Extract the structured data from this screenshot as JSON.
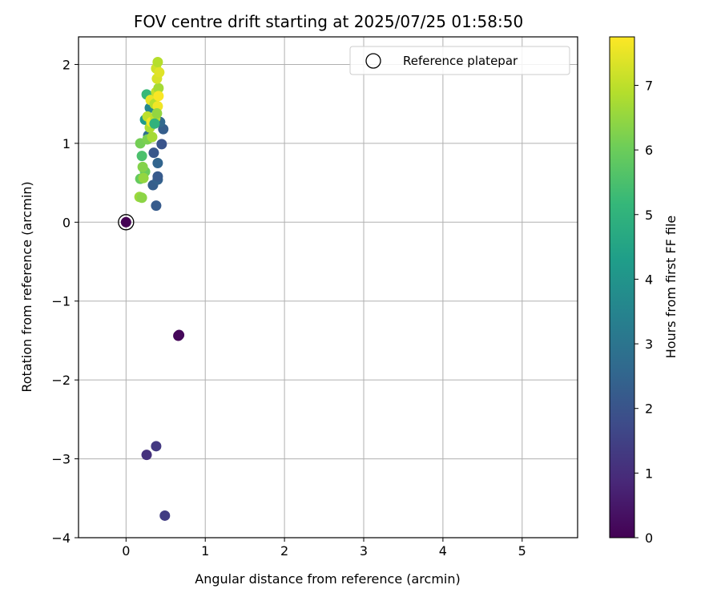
{
  "chart_data": {
    "type": "scatter",
    "title": "FOV centre drift starting at 2025/07/25 01:58:50",
    "xlabel": "Angular distance from reference (arcmin)",
    "ylabel": "Rotation from reference (arcmin)",
    "xlim": [
      -0.6,
      5.7
    ],
    "ylim": [
      -4,
      2.35
    ],
    "xticks": [
      "0",
      "1",
      "2",
      "3",
      "4",
      "5"
    ],
    "yticks": [
      "−4",
      "−3",
      "−2",
      "−1",
      "0",
      "1",
      "2"
    ],
    "grid": true,
    "legend_position": "top-right",
    "legend_label": "Reference platepar",
    "colorbar": {
      "label": "Hours from first FF file",
      "range": [
        0,
        7.75
      ],
      "ticks": [
        "0",
        "1",
        "2",
        "3",
        "4",
        "5",
        "6",
        "7"
      ],
      "colormap": "viridis"
    },
    "reference_point": {
      "x": 0,
      "y": 0
    },
    "points": [
      {
        "x": 0.0,
        "y": 0.0,
        "hours": 0.0
      },
      {
        "x": 0.66,
        "y": -1.44,
        "hours": 0.1
      },
      {
        "x": 0.67,
        "y": -1.43,
        "hours": 0.15
      },
      {
        "x": 0.26,
        "y": -2.95,
        "hours": 1.1
      },
      {
        "x": 0.38,
        "y": -2.84,
        "hours": 1.3
      },
      {
        "x": 0.49,
        "y": -3.72,
        "hours": 1.4
      },
      {
        "x": 0.38,
        "y": 0.21,
        "hours": 2.2
      },
      {
        "x": 0.34,
        "y": 0.47,
        "hours": 2.3
      },
      {
        "x": 0.4,
        "y": 0.54,
        "hours": 2.4
      },
      {
        "x": 0.4,
        "y": 0.58,
        "hours": 2.2
      },
      {
        "x": 0.4,
        "y": 0.75,
        "hours": 2.5
      },
      {
        "x": 0.35,
        "y": 0.88,
        "hours": 2.1
      },
      {
        "x": 0.45,
        "y": 0.99,
        "hours": 2.0
      },
      {
        "x": 0.47,
        "y": 1.18,
        "hours": 2.3
      },
      {
        "x": 0.43,
        "y": 1.27,
        "hours": 2.6
      },
      {
        "x": 0.28,
        "y": 1.1,
        "hours": 2.8
      },
      {
        "x": 0.3,
        "y": 1.45,
        "hours": 3.6
      },
      {
        "x": 0.26,
        "y": 1.62,
        "hours": 5.2
      },
      {
        "x": 0.24,
        "y": 1.3,
        "hours": 4.2
      },
      {
        "x": 0.2,
        "y": 0.84,
        "hours": 5.5
      },
      {
        "x": 0.18,
        "y": 0.55,
        "hours": 5.9
      },
      {
        "x": 0.24,
        "y": 0.64,
        "hours": 6.0
      },
      {
        "x": 0.21,
        "y": 0.7,
        "hours": 6.3
      },
      {
        "x": 0.18,
        "y": 1.0,
        "hours": 6.1
      },
      {
        "x": 0.22,
        "y": 0.56,
        "hours": 6.5
      },
      {
        "x": 0.17,
        "y": 0.32,
        "hours": 6.6
      },
      {
        "x": 0.2,
        "y": 0.31,
        "hours": 6.4
      },
      {
        "x": 0.27,
        "y": 1.05,
        "hours": 6.2
      },
      {
        "x": 0.3,
        "y": 1.2,
        "hours": 6.8
      },
      {
        "x": 0.27,
        "y": 1.34,
        "hours": 7.0
      },
      {
        "x": 0.32,
        "y": 1.27,
        "hours": 7.6
      },
      {
        "x": 0.31,
        "y": 1.55,
        "hours": 7.5
      },
      {
        "x": 0.36,
        "y": 1.5,
        "hours": 6.9
      },
      {
        "x": 0.38,
        "y": 1.65,
        "hours": 7.1
      },
      {
        "x": 0.41,
        "y": 1.7,
        "hours": 6.7
      },
      {
        "x": 0.39,
        "y": 1.82,
        "hours": 7.3
      },
      {
        "x": 0.38,
        "y": 1.95,
        "hours": 7.2
      },
      {
        "x": 0.4,
        "y": 2.03,
        "hours": 6.9
      },
      {
        "x": 0.42,
        "y": 1.9,
        "hours": 7.4
      },
      {
        "x": 0.4,
        "y": 1.47,
        "hours": 7.6
      },
      {
        "x": 0.37,
        "y": 1.32,
        "hours": 7.0
      },
      {
        "x": 0.33,
        "y": 1.08,
        "hours": 6.7
      },
      {
        "x": 0.36,
        "y": 1.25,
        "hours": 5.0
      },
      {
        "x": 0.39,
        "y": 1.38,
        "hours": 6.5
      },
      {
        "x": 0.41,
        "y": 1.6,
        "hours": 7.7
      }
    ]
  }
}
